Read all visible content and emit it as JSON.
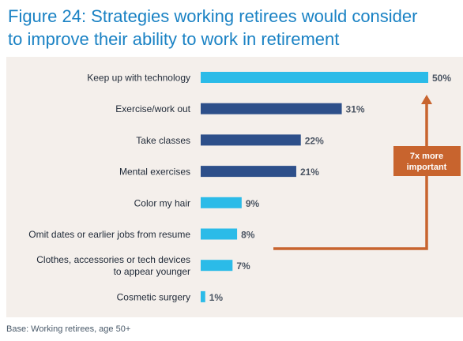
{
  "title_line1": "Figure 24: Strategies working retirees would consider",
  "title_line2": "to improve their ability to work in retirement",
  "base_note": "Base: Working retirees, age 50+",
  "callout": {
    "line1": "7x more",
    "line2": "important"
  },
  "colors": {
    "title": "#1a82c4",
    "panel": "#f4efeb",
    "highlight_bar": "#2bbbe8",
    "dark_bar": "#2d4f8a",
    "callout": "#c8642e",
    "value_text": "#4b5563",
    "label_text": "#1f2937"
  },
  "chart_data": {
    "type": "bar",
    "orientation": "horizontal",
    "title": "Figure 24: Strategies working retirees would consider to improve their ability to work in retirement",
    "categories": [
      [
        "Keep up with technology"
      ],
      [
        "Exercise/work out"
      ],
      [
        "Take classes"
      ],
      [
        "Mental exercises"
      ],
      [
        "Color my hair"
      ],
      [
        "Omit dates or earlier jobs from resume"
      ],
      [
        "Clothes, accessories or tech devices",
        "to appear younger"
      ],
      [
        "Cosmetic surgery"
      ]
    ],
    "values": [
      50,
      31,
      22,
      21,
      9,
      8,
      7,
      1
    ],
    "value_labels": [
      "50%",
      "31%",
      "22%",
      "21%",
      "9%",
      "8%",
      "7%",
      "1%"
    ],
    "bar_colors": [
      "#2bbbe8",
      "#2d4f8a",
      "#2d4f8a",
      "#2d4f8a",
      "#2bbbe8",
      "#2bbbe8",
      "#2bbbe8",
      "#2bbbe8"
    ],
    "xlim": [
      0,
      50
    ],
    "grid": false,
    "legend": "none"
  }
}
